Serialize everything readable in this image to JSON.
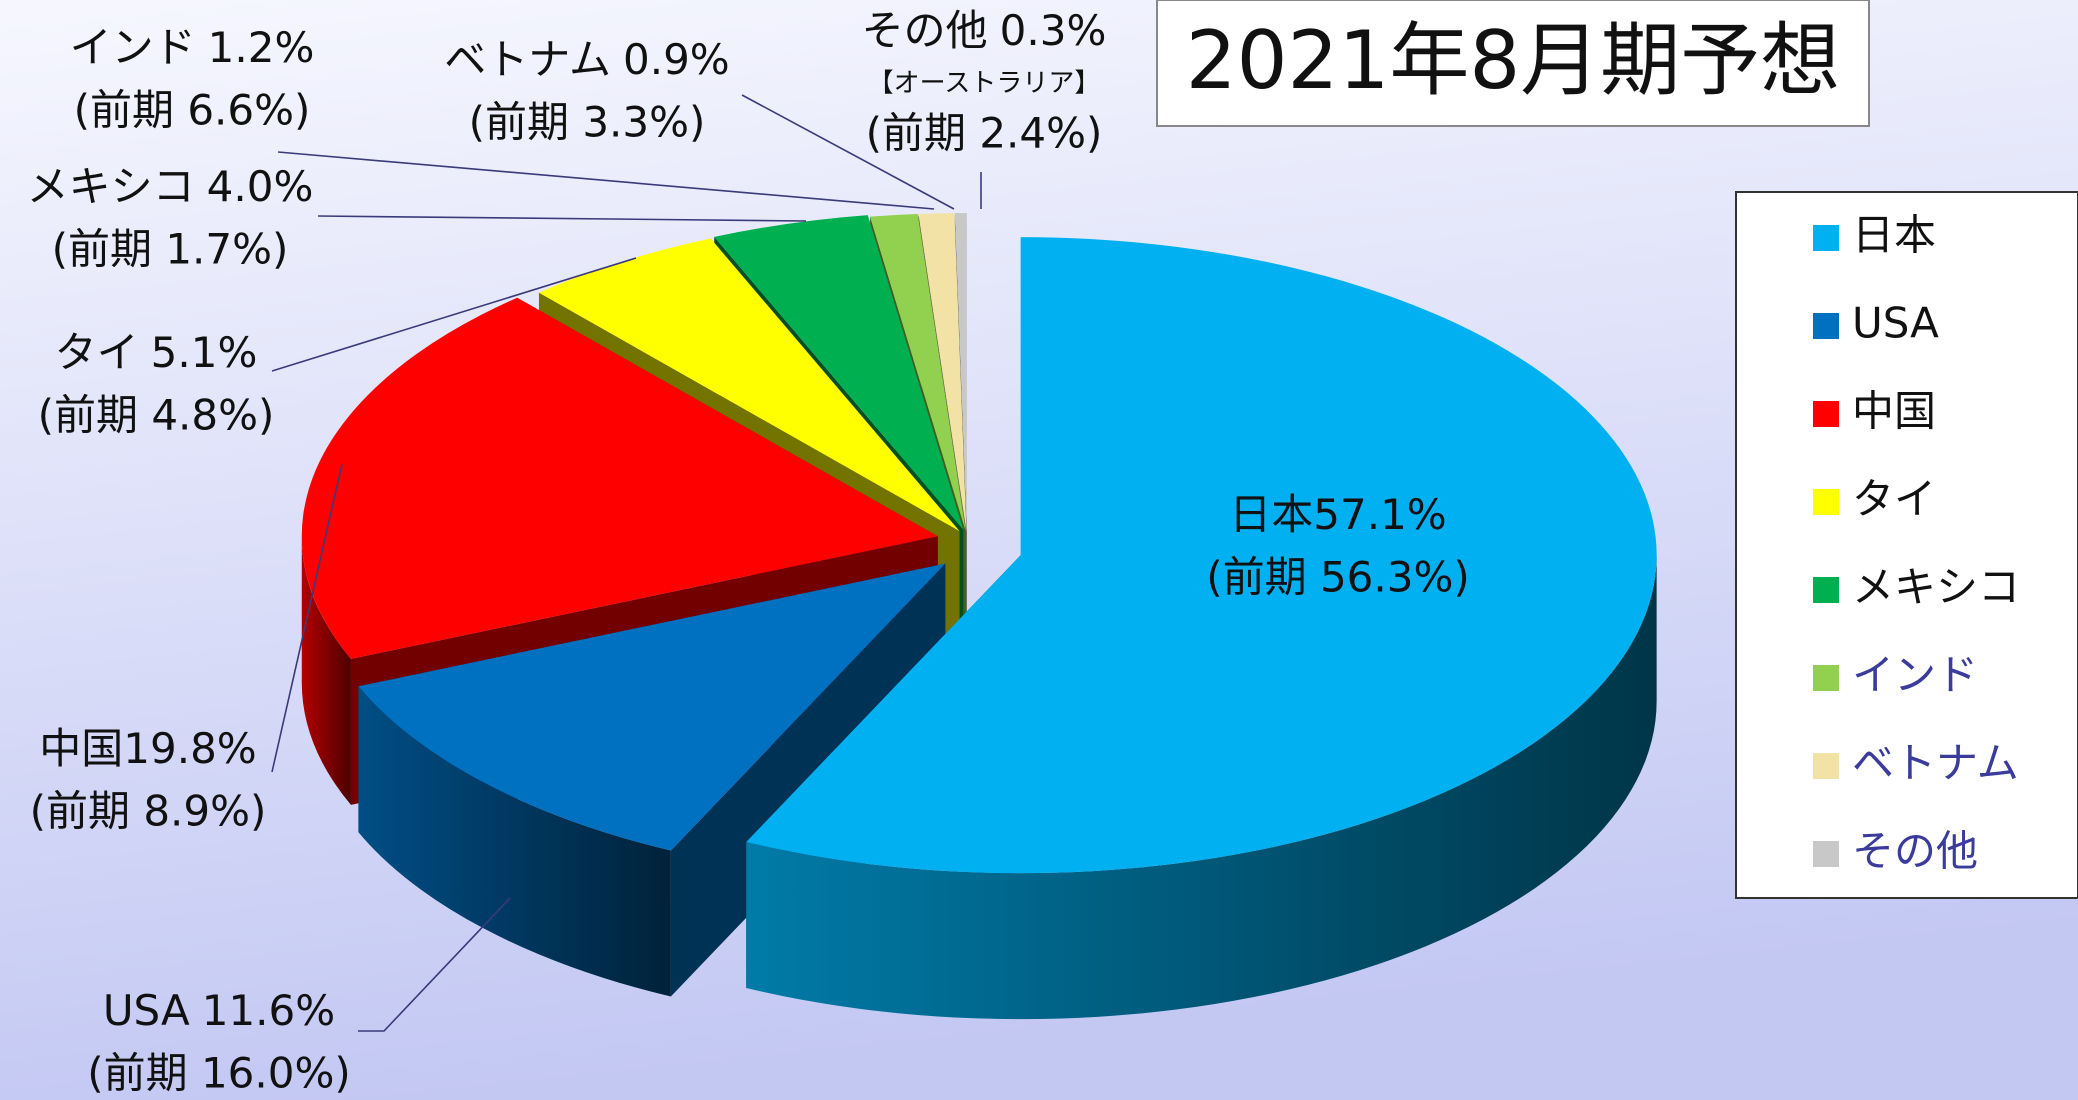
{
  "chart_data": {
    "type": "pie",
    "title": "2021年8月期予想",
    "categories": [
      "日本",
      "USA",
      "中国",
      "タイ",
      "メキシコ",
      "インド",
      "ベトナム",
      "その他"
    ],
    "values": [
      57.1,
      11.6,
      19.8,
      5.1,
      4.0,
      1.2,
      0.9,
      0.3
    ],
    "value_labels": [
      "57.1%",
      "11.6%",
      "19.8%",
      "5.1%",
      "4.0%",
      "1.2%",
      "0.9%",
      "0.3%"
    ],
    "previous_labels": [
      "(前期 56.3%)",
      "(前期 16.0%)",
      "(前期 8.9%)",
      "(前期 4.8%)",
      "(前期 1.7%)",
      "(前期 6.6%)",
      "(前期 3.3%)",
      "(前期 2.4%)"
    ],
    "annotation": "【オーストラリア】",
    "colors": [
      "#00b0f0",
      "#0070c0",
      "#ff0000",
      "#ffff00",
      "#00b050",
      "#92d050",
      "#f2e2a6",
      "#c8c8c8"
    ],
    "legend": "right"
  }
}
